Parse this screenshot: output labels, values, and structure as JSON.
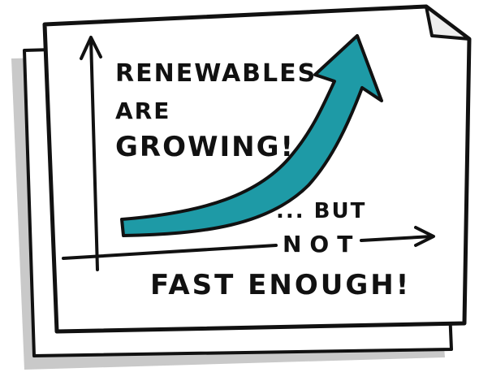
{
  "headline": {
    "lines": [
      "RENEWABLES",
      "ARE",
      "GROWING!"
    ]
  },
  "caption": {
    "lead": "... BUT",
    "middle": "NOT",
    "end": "FAST ENOUGH!"
  }
}
